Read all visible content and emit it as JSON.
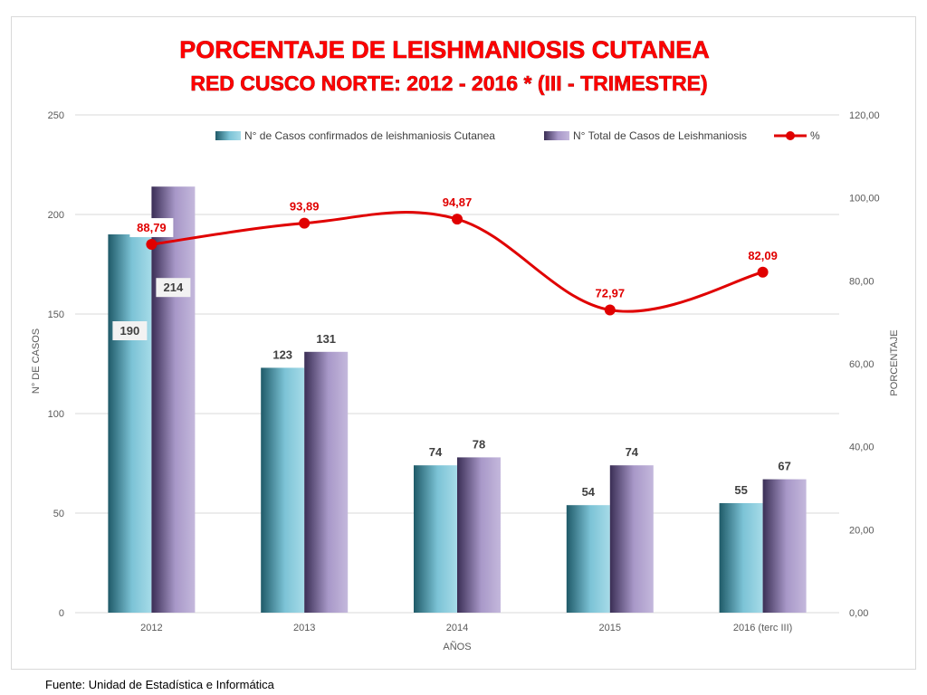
{
  "source_note": "Fuente: Unidad de Estadística e Informática",
  "colors": {
    "series1": "#4a9bb0",
    "series2": "#8f7fae",
    "line": "#e00000",
    "title": "#ff0000",
    "grid": "#d9d9d9"
  },
  "chart_data": {
    "type": "bar",
    "title": "PORCENTAJE DE LEISHMANIOSIS CUTANEA",
    "subtitle": "RED CUSCO NORTE: 2012 - 2016 * (III - TRIMESTRE)",
    "xlabel": "AÑOS",
    "ylabel": "N° DE CASOS",
    "y2label": "PORCENTAJE",
    "categories": [
      "2012",
      "2013",
      "2014",
      "2015",
      "2016 (terc III)"
    ],
    "ylim": [
      0,
      250
    ],
    "yticks": [
      "0",
      "50",
      "100",
      "150",
      "200",
      "250"
    ],
    "y2lim": [
      0,
      120
    ],
    "y2ticks": [
      "0,00",
      "20,00",
      "40,00",
      "60,00",
      "80,00",
      "100,00",
      "120,00"
    ],
    "legend_position": "top",
    "grid": true,
    "series": [
      {
        "name": "N° de Casos confirmados de leishmaniosis Cutanea",
        "type": "bar",
        "axis": "left",
        "values": [
          190,
          123,
          74,
          54,
          55
        ],
        "labels": [
          "190",
          "123",
          "74",
          "54",
          "55"
        ]
      },
      {
        "name": "N° Total de Casos de Leishmaniosis",
        "type": "bar",
        "axis": "left",
        "values": [
          214,
          131,
          78,
          74,
          67
        ],
        "labels": [
          "214",
          "131",
          "78",
          "74",
          "67"
        ]
      },
      {
        "name": "%",
        "type": "line",
        "axis": "right",
        "values": [
          88.79,
          93.89,
          94.87,
          72.97,
          82.09
        ],
        "labels": [
          "88,79",
          "93,89",
          "94,87",
          "72,97",
          "82,09"
        ]
      }
    ]
  }
}
